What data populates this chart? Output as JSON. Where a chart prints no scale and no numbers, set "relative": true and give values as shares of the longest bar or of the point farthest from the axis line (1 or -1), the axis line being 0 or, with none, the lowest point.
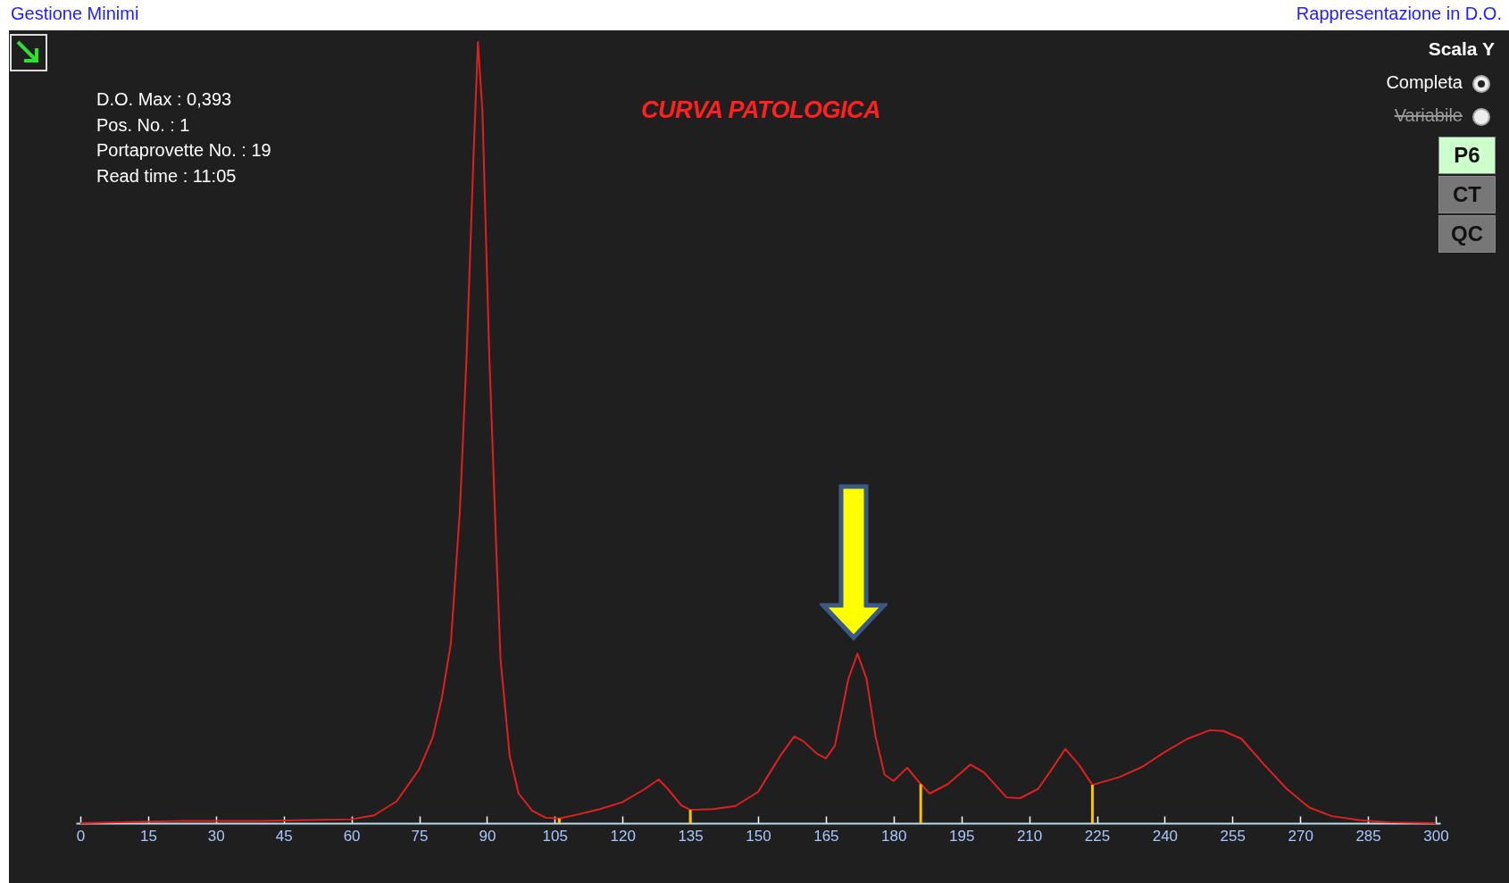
{
  "chart_data": {
    "type": "line",
    "relative": true,
    "title": "CURVA PATOLOGICA",
    "annotations": [
      "Gestione Minimi",
      "Rappresentazione in D.O.",
      "D.O. Max : 0,393",
      "Pos. No. : 1",
      "Portaprovette No. : 19",
      "Read time : 11:05",
      "Scala Y",
      "Completa",
      "Variabile",
      "P6",
      "CT",
      "QC"
    ],
    "x": [
      0,
      23,
      40,
      60,
      65,
      70,
      75,
      78,
      80,
      82,
      84,
      85.5,
      87,
      88,
      89,
      90.5,
      92,
      93,
      95,
      97,
      100,
      103,
      106,
      110,
      115,
      120,
      125,
      128,
      130,
      133,
      135,
      140,
      145,
      150,
      155,
      158,
      160,
      163,
      165,
      167,
      170,
      172,
      174,
      176,
      178,
      180,
      183,
      186,
      188,
      192,
      197,
      200,
      205,
      208,
      212,
      215,
      218,
      221,
      224,
      230,
      235,
      240,
      245,
      250,
      253,
      257,
      262,
      267,
      272,
      277,
      283,
      290,
      300
    ],
    "series": [
      {
        "color": "#e02020",
        "values": [
          0,
          0.003,
          0.003,
          0.005,
          0.01,
          0.028,
          0.069,
          0.11,
          0.16,
          0.23,
          0.4,
          0.6,
          0.85,
          1,
          0.91,
          0.6,
          0.36,
          0.21,
          0.087,
          0.038,
          0.016,
          0.007,
          0.006,
          0.011,
          0.018,
          0.027,
          0.044,
          0.056,
          0.044,
          0.023,
          0.017,
          0.018,
          0.022,
          0.04,
          0.087,
          0.111,
          0.105,
          0.089,
          0.083,
          0.099,
          0.185,
          0.217,
          0.185,
          0.111,
          0.062,
          0.054,
          0.071,
          0.05,
          0.038,
          0.05,
          0.075,
          0.065,
          0.033,
          0.032,
          0.044,
          0.069,
          0.095,
          0.075,
          0.049,
          0.059,
          0.072,
          0.091,
          0.108,
          0.119,
          0.118,
          0.108,
          0.075,
          0.044,
          0.02,
          0.009,
          0.004,
          0.001,
          0
        ]
      },
      {
        "type": "bar",
        "color": "#ffc000",
        "x": [
          0,
          106,
          135,
          186,
          224,
          299
        ],
        "values": [
          0,
          0.006,
          0.017,
          0.05,
          0.049,
          0
        ]
      }
    ],
    "xlim": [
      0,
      300
    ],
    "xticks": [
      0,
      15,
      30,
      45,
      60,
      75,
      90,
      105,
      120,
      135,
      150,
      165,
      180,
      195,
      210,
      225,
      240,
      255,
      270,
      285,
      300
    ],
    "grid": false,
    "legend": false
  }
}
